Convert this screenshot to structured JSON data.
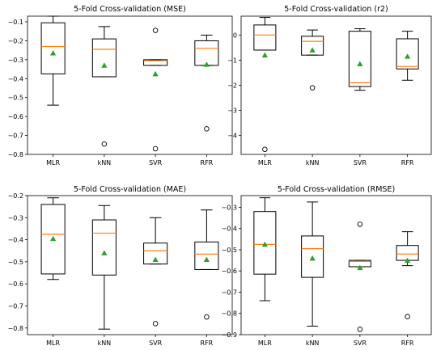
{
  "chart_data": [
    {
      "type": "boxplot",
      "title": "5-Fold Cross-validation (MSE)",
      "categories": [
        "MLR",
        "kNN",
        "SVR",
        "RFR"
      ],
      "ylim": [
        -0.8,
        -0.07
      ],
      "yticks": [
        -0.1,
        -0.2,
        -0.3,
        -0.4,
        -0.5,
        -0.6,
        -0.7,
        -0.8
      ],
      "ytick_labels": [
        "−0.1",
        "−0.2",
        "−0.3",
        "−0.4",
        "−0.5",
        "−0.6",
        "−0.7",
        "−0.8"
      ],
      "boxes": [
        {
          "whislo": -0.54,
          "q1": -0.375,
          "med": -0.23,
          "q3": -0.105,
          "whishi": -0.07,
          "mean": -0.265,
          "fliers": []
        },
        {
          "whislo": -0.39,
          "q1": -0.39,
          "med": -0.245,
          "q3": -0.19,
          "whishi": -0.125,
          "mean": -0.33,
          "fliers": [
            -0.745
          ]
        },
        {
          "whislo": -0.33,
          "q1": -0.33,
          "med": -0.305,
          "q3": -0.3,
          "whishi": -0.3,
          "mean": -0.375,
          "fliers": [
            -0.145,
            -0.77
          ]
        },
        {
          "whislo": -0.33,
          "q1": -0.33,
          "med": -0.24,
          "q3": -0.2,
          "whishi": -0.17,
          "mean": -0.325,
          "fliers": [
            -0.665
          ]
        }
      ]
    },
    {
      "type": "boxplot",
      "title": "5-Fold Cross-validation (r2)",
      "categories": [
        "MLR",
        "kNN",
        "SVR",
        "RFR"
      ],
      "ylim": [
        -4.75,
        0.75
      ],
      "yticks": [
        0,
        -1,
        -2,
        -3,
        -4
      ],
      "ytick_labels": [
        "0",
        "−1",
        "−2",
        "−3",
        "−4"
      ],
      "boxes": [
        {
          "whislo": -0.6,
          "q1": -0.6,
          "med": 0.0,
          "q3": 0.4,
          "whishi": 0.7,
          "mean": -0.8,
          "fliers": [
            -4.55
          ]
        },
        {
          "whislo": -0.8,
          "q1": -0.8,
          "med": -0.25,
          "q3": -0.05,
          "whishi": 0.2,
          "mean": -0.6,
          "fliers": [
            -2.1
          ]
        },
        {
          "whislo": -2.2,
          "q1": -2.05,
          "med": -1.9,
          "q3": 0.15,
          "whishi": 0.25,
          "mean": -1.15,
          "fliers": []
        },
        {
          "whislo": -1.8,
          "q1": -1.35,
          "med": -1.25,
          "q3": -0.15,
          "whishi": 0.15,
          "mean": -0.85,
          "fliers": []
        }
      ]
    },
    {
      "type": "boxplot",
      "title": "5-Fold Cross-validation (MAE)",
      "categories": [
        "MLR",
        "kNN",
        "SVR",
        "RFR"
      ],
      "ylim": [
        -0.83,
        -0.2
      ],
      "yticks": [
        -0.2,
        -0.3,
        -0.4,
        -0.5,
        -0.6,
        -0.7,
        -0.8
      ],
      "ytick_labels": [
        "−0.2",
        "−0.3",
        "−0.4",
        "−0.5",
        "−0.6",
        "−0.7",
        "−0.8"
      ],
      "boxes": [
        {
          "whislo": -0.58,
          "q1": -0.555,
          "med": -0.375,
          "q3": -0.24,
          "whishi": -0.21,
          "mean": -0.395,
          "fliers": []
        },
        {
          "whislo": -0.805,
          "q1": -0.56,
          "med": -0.37,
          "q3": -0.31,
          "whishi": -0.245,
          "mean": -0.46,
          "fliers": []
        },
        {
          "whislo": -0.51,
          "q1": -0.51,
          "med": -0.45,
          "q3": -0.415,
          "whishi": -0.3,
          "mean": -0.49,
          "fliers": [
            -0.78
          ]
        },
        {
          "whislo": -0.535,
          "q1": -0.535,
          "med": -0.465,
          "q3": -0.41,
          "whishi": -0.265,
          "mean": -0.49,
          "fliers": [
            -0.75
          ]
        }
      ]
    },
    {
      "type": "boxplot",
      "title": "5-Fold Cross-validation (RMSE)",
      "categories": [
        "MLR",
        "kNN",
        "SVR",
        "RFR"
      ],
      "ylim": [
        -0.9,
        -0.245
      ],
      "yticks": [
        -0.3,
        -0.4,
        -0.5,
        -0.6,
        -0.7,
        -0.8,
        -0.9
      ],
      "ytick_labels": [
        "−0.3",
        "−0.4",
        "−0.5",
        "−0.6",
        "−0.7",
        "−0.8",
        "−0.9"
      ],
      "boxes": [
        {
          "whislo": -0.74,
          "q1": -0.615,
          "med": -0.475,
          "q3": -0.32,
          "whishi": -0.255,
          "mean": -0.475,
          "fliers": []
        },
        {
          "whislo": -0.86,
          "q1": -0.63,
          "med": -0.495,
          "q3": -0.435,
          "whishi": -0.275,
          "mean": -0.54,
          "fliers": []
        },
        {
          "whislo": -0.58,
          "q1": -0.58,
          "med": -0.555,
          "q3": -0.55,
          "whishi": -0.55,
          "mean": -0.585,
          "fliers": [
            -0.38,
            -0.875
          ]
        },
        {
          "whislo": -0.575,
          "q1": -0.55,
          "med": -0.52,
          "q3": -0.48,
          "whishi": -0.415,
          "mean": -0.55,
          "fliers": [
            -0.815
          ]
        }
      ]
    }
  ]
}
